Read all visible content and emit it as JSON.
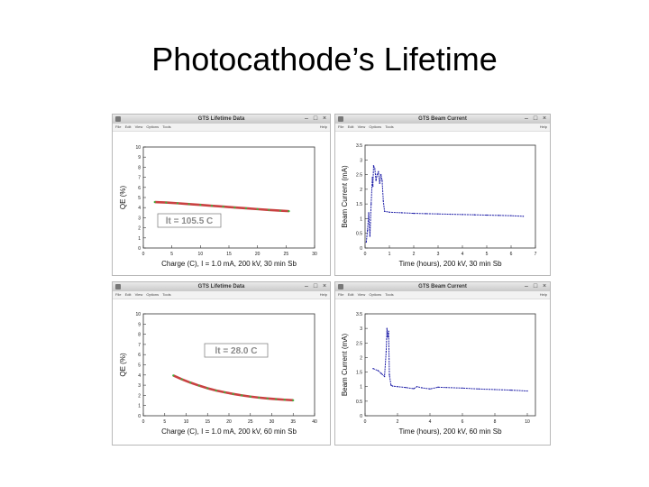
{
  "slide": {
    "title": "Photocathode’s Lifetime"
  },
  "windows": [
    {
      "title": "GTS Lifetime Data",
      "menu": [
        "File",
        "Edit",
        "View",
        "Options",
        "Tools"
      ],
      "help": "Help"
    },
    {
      "title": "GTS Beam Current",
      "menu": [
        "File",
        "Edit",
        "View",
        "Options",
        "Tools"
      ],
      "help": "Help"
    },
    {
      "title": "GTS Lifetime Data",
      "menu": [
        "File",
        "Edit",
        "View",
        "Options",
        "Tools"
      ],
      "help": "Help"
    },
    {
      "title": "GTS Beam Current",
      "menu": [
        "File",
        "Edit",
        "View",
        "Options",
        "Tools"
      ],
      "help": "Help"
    }
  ],
  "chart_data": [
    {
      "type": "scatter",
      "xlabel": "Charge (C), I = 1.0 mA, 200 kV, 30 min Sb",
      "ylabel": "QE (%)",
      "xlim": [
        0,
        30
      ],
      "ylim": [
        0,
        10
      ],
      "xticks": [
        "0",
        "5",
        "10",
        "15",
        "20",
        "25",
        "30"
      ],
      "yticks": [
        "0",
        "1",
        "2",
        "3",
        "4",
        "5",
        "6",
        "7",
        "8",
        "9",
        "10"
      ],
      "annotation": "lt = 105.5 C",
      "colors": {
        "data": "#3cb43c",
        "fit": "#c02020"
      },
      "x": [
        2,
        4,
        6,
        8,
        10,
        12,
        14,
        16,
        18,
        20,
        22,
        24,
        25.5
      ],
      "y": [
        4.55,
        4.5,
        4.43,
        4.35,
        4.27,
        4.18,
        4.1,
        4.01,
        3.93,
        3.85,
        3.77,
        3.7,
        3.65
      ]
    },
    {
      "type": "line",
      "xlabel": "Time (hours), 200 kV, 30 min Sb",
      "ylabel": "Beam Current (mA)",
      "xlim": [
        0,
        7
      ],
      "ylim": [
        0,
        3.5
      ],
      "xticks": [
        "0",
        "1",
        "2",
        "3",
        "4",
        "5",
        "6",
        "7"
      ],
      "yticks": [
        "0",
        "0.5",
        "1",
        "1.5",
        "2",
        "2.5",
        "3",
        "3.5"
      ],
      "colors": {
        "data": "#2020a8"
      },
      "x": [
        0.05,
        0.1,
        0.15,
        0.2,
        0.25,
        0.3,
        0.32,
        0.35,
        0.4,
        0.45,
        0.5,
        0.55,
        0.6,
        0.65,
        0.7,
        0.75,
        0.8,
        1,
        1.5,
        2,
        2.5,
        3,
        3.5,
        4,
        4.5,
        5,
        5.5,
        6,
        6.5
      ],
      "y": [
        0.2,
        0.6,
        1.2,
        0.4,
        1.5,
        2.4,
        2.1,
        2.8,
        2.7,
        2.3,
        2.5,
        2.6,
        2.2,
        2.5,
        2.3,
        1.6,
        1.25,
        1.22,
        1.2,
        1.18,
        1.17,
        1.16,
        1.15,
        1.14,
        1.13,
        1.12,
        1.11,
        1.1,
        1.08
      ]
    },
    {
      "type": "scatter",
      "xlabel": "Charge (C), I = 1.0 mA, 200 kV, 60 min Sb",
      "ylabel": "QE (%)",
      "xlim": [
        0,
        40
      ],
      "ylim": [
        0,
        10
      ],
      "xticks": [
        "0",
        "5",
        "10",
        "15",
        "20",
        "25",
        "30",
        "35",
        "40"
      ],
      "yticks": [
        "0",
        "1",
        "2",
        "3",
        "4",
        "5",
        "6",
        "7",
        "8",
        "9",
        "10"
      ],
      "annotation": "lt =  28.0 C",
      "colors": {
        "data": "#3cb43c",
        "fit": "#c02020"
      },
      "x": [
        7,
        9,
        11,
        13,
        15,
        17,
        19,
        21,
        23,
        25,
        27,
        29,
        31,
        33,
        35
      ],
      "y": [
        3.95,
        3.58,
        3.25,
        2.96,
        2.7,
        2.48,
        2.3,
        2.14,
        2.0,
        1.88,
        1.78,
        1.7,
        1.63,
        1.57,
        1.52
      ]
    },
    {
      "type": "line",
      "xlabel": "Time (hours), 200 kV, 60 min Sb",
      "ylabel": "Beam Current (mA)",
      "xlim": [
        0,
        10.5
      ],
      "ylim": [
        0,
        3.5
      ],
      "xticks": [
        "0",
        "2",
        "4",
        "6",
        "8",
        "10"
      ],
      "yticks": [
        "0",
        "0.5",
        "1",
        "1.5",
        "2",
        "2.5",
        "3",
        "3.5"
      ],
      "colors": {
        "data": "#2020a8"
      },
      "x": [
        0.5,
        0.8,
        1.0,
        1.2,
        1.3,
        1.35,
        1.4,
        1.45,
        1.5,
        1.6,
        1.7,
        2.0,
        2.5,
        3.0,
        3.2,
        3.5,
        4.0,
        4.5,
        5.0,
        6,
        7,
        8,
        9,
        10
      ],
      "y": [
        1.62,
        1.55,
        1.45,
        1.35,
        2.2,
        3.0,
        2.7,
        2.9,
        1.4,
        1.05,
        1.02,
        1.0,
        0.97,
        0.93,
        1.0,
        0.96,
        0.92,
        0.98,
        0.97,
        0.95,
        0.92,
        0.9,
        0.88,
        0.85
      ]
    }
  ]
}
